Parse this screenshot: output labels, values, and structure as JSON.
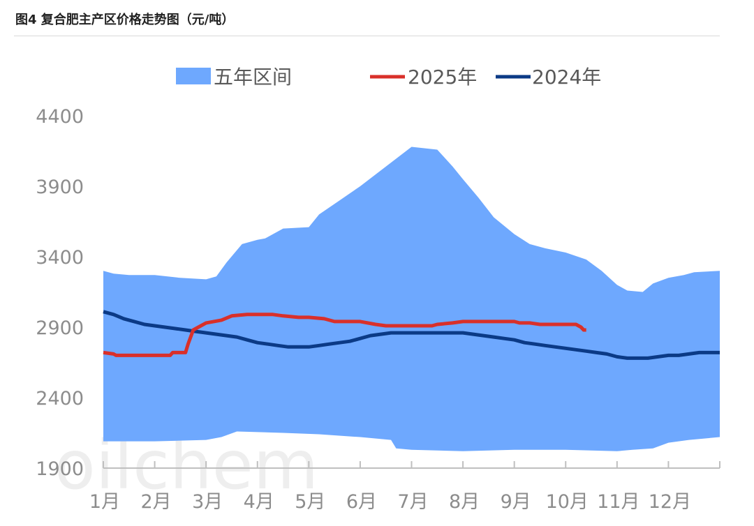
{
  "figure_title": "图4  复合肥主产区价格走势图（元/吨）",
  "watermark": "oilchem",
  "colors": {
    "band": "#6ea8fe",
    "series_2025": "#d9302a",
    "series_2024": "#0b3a86",
    "axis": "#bfbfbf",
    "tick_text": "#8c8c8c"
  },
  "chart_data": {
    "type": "area",
    "xlabel": "",
    "ylabel": "",
    "ylim": [
      1900,
      4400
    ],
    "yticks": [
      1900,
      2400,
      2900,
      3400,
      3900,
      4400
    ],
    "xlim": [
      1,
      13
    ],
    "categories": [
      "1月",
      "2月",
      "3月",
      "4月",
      "5月",
      "6月",
      "7月",
      "8月",
      "9月",
      "10月",
      "11月",
      "12月"
    ],
    "legend_position": "top",
    "band": {
      "name": "五年区间",
      "upper": [
        [
          1,
          3300
        ],
        [
          1.2,
          3280
        ],
        [
          1.5,
          3270
        ],
        [
          2,
          3270
        ],
        [
          2.5,
          3250
        ],
        [
          3,
          3240
        ],
        [
          3.2,
          3260
        ],
        [
          3.4,
          3360
        ],
        [
          3.7,
          3490
        ],
        [
          4,
          3520
        ],
        [
          4.15,
          3530
        ],
        [
          4.5,
          3600
        ],
        [
          5,
          3610
        ],
        [
          5.2,
          3700
        ],
        [
          5.6,
          3800
        ],
        [
          6,
          3900
        ],
        [
          6.5,
          4040
        ],
        [
          7,
          4180
        ],
        [
          7.5,
          4160
        ],
        [
          7.8,
          4040
        ],
        [
          8,
          3950
        ],
        [
          8.3,
          3820
        ],
        [
          8.6,
          3680
        ],
        [
          9,
          3560
        ],
        [
          9.3,
          3490
        ],
        [
          9.6,
          3460
        ],
        [
          10,
          3430
        ],
        [
          10.4,
          3380
        ],
        [
          10.7,
          3300
        ],
        [
          11,
          3200
        ],
        [
          11.2,
          3160
        ],
        [
          11.5,
          3150
        ],
        [
          11.7,
          3210
        ],
        [
          12,
          3250
        ],
        [
          12.3,
          3270
        ],
        [
          12.5,
          3290
        ],
        [
          13,
          3300
        ]
      ],
      "lower": [
        [
          1,
          2090
        ],
        [
          2,
          2090
        ],
        [
          3,
          2100
        ],
        [
          3.3,
          2120
        ],
        [
          3.6,
          2160
        ],
        [
          4.5,
          2150
        ],
        [
          5.2,
          2140
        ],
        [
          6,
          2120
        ],
        [
          6.6,
          2100
        ],
        [
          6.7,
          2040
        ],
        [
          7,
          2030
        ],
        [
          8,
          2020
        ],
        [
          9,
          2030
        ],
        [
          10,
          2030
        ],
        [
          11,
          2020
        ],
        [
          11.3,
          2030
        ],
        [
          11.7,
          2040
        ],
        [
          12,
          2080
        ],
        [
          12.4,
          2100
        ],
        [
          13,
          2120
        ]
      ]
    },
    "series": [
      {
        "name": "2025年",
        "x": [
          1,
          1.2,
          1.25,
          1.5,
          2,
          2.3,
          2.35,
          2.6,
          2.65,
          2.75,
          2.85,
          3,
          3.3,
          3.5,
          3.8,
          4,
          4.3,
          4.5,
          4.8,
          5,
          5.3,
          5.5,
          5.8,
          6,
          6.3,
          6.5,
          7,
          7.4,
          7.5,
          7.8,
          8,
          8.3,
          8.6,
          9,
          9.1,
          9.3,
          9.5,
          9.8,
          10,
          10.2,
          10.3,
          10.35,
          10.4
        ],
        "y": [
          2720,
          2710,
          2700,
          2700,
          2700,
          2700,
          2720,
          2720,
          2780,
          2880,
          2900,
          2930,
          2950,
          2980,
          2990,
          2990,
          2990,
          2980,
          2970,
          2970,
          2960,
          2940,
          2940,
          2940,
          2920,
          2910,
          2910,
          2910,
          2920,
          2930,
          2940,
          2940,
          2940,
          2940,
          2930,
          2930,
          2920,
          2920,
          2920,
          2920,
          2900,
          2880,
          2880
        ]
      },
      {
        "name": "2024年",
        "x": [
          1,
          1.2,
          1.4,
          1.6,
          1.8,
          2,
          2.2,
          2.4,
          2.6,
          2.8,
          3,
          3.2,
          3.4,
          3.6,
          3.8,
          4,
          4.2,
          4.4,
          4.6,
          4.8,
          5,
          5.2,
          5.4,
          5.6,
          5.8,
          6,
          6.2,
          6.4,
          6.6,
          6.8,
          7,
          7.2,
          7.4,
          7.6,
          7.8,
          8,
          8.2,
          8.4,
          8.6,
          8.8,
          9,
          9.2,
          9.4,
          9.6,
          9.8,
          10,
          10.2,
          10.4,
          10.6,
          10.8,
          11,
          11.2,
          11.4,
          11.6,
          11.8,
          12,
          12.2,
          12.4,
          12.6,
          12.8,
          13
        ],
        "y": [
          3010,
          2990,
          2960,
          2940,
          2920,
          2910,
          2900,
          2890,
          2880,
          2870,
          2860,
          2850,
          2840,
          2830,
          2810,
          2790,
          2780,
          2770,
          2760,
          2760,
          2760,
          2770,
          2780,
          2790,
          2800,
          2820,
          2840,
          2850,
          2860,
          2860,
          2860,
          2860,
          2860,
          2860,
          2860,
          2860,
          2850,
          2840,
          2830,
          2820,
          2810,
          2790,
          2780,
          2770,
          2760,
          2750,
          2740,
          2730,
          2720,
          2710,
          2690,
          2680,
          2680,
          2680,
          2690,
          2700,
          2700,
          2710,
          2720,
          2720,
          2720
        ]
      }
    ]
  }
}
